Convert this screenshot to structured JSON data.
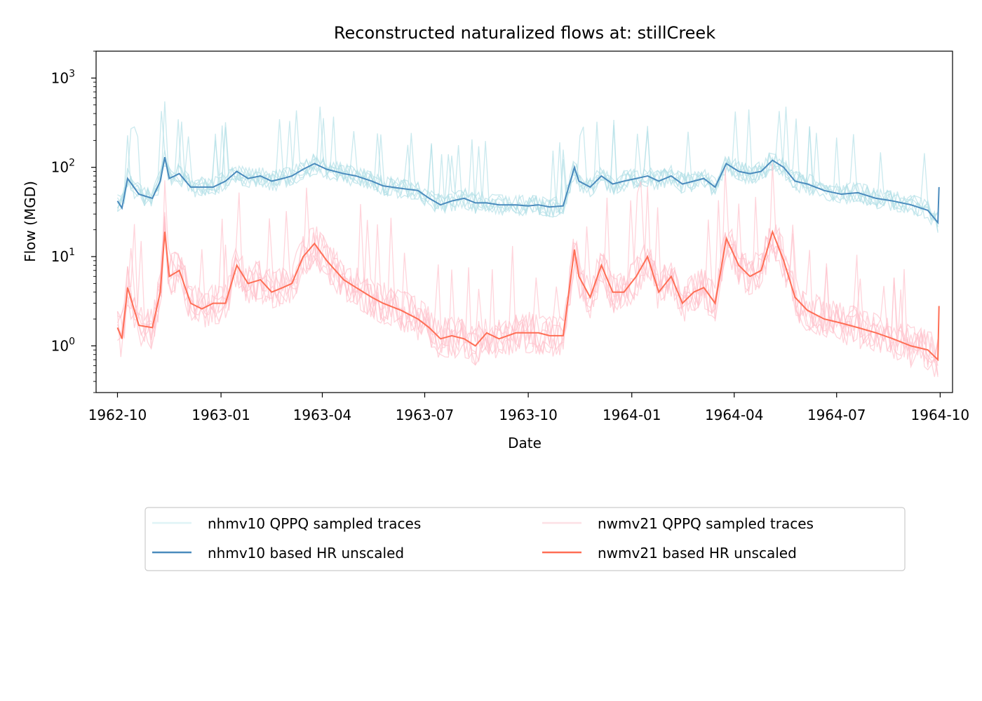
{
  "chart_data": {
    "type": "line",
    "title": "Reconstructed naturalized flows at: stillCreek",
    "xlabel": "Date",
    "ylabel": "Flow (MGD)",
    "yscale": "log",
    "ylim": [
      0.3,
      2000
    ],
    "xlim": [
      "1962-09-12",
      "1964-10-12"
    ],
    "grid": false,
    "legend_position": "below plot, 2 columns",
    "x_ticks": [
      {
        "date": "1962-10-01",
        "label": "1962-10"
      },
      {
        "date": "1963-01-01",
        "label": "1963-01"
      },
      {
        "date": "1963-04-01",
        "label": "1963-04"
      },
      {
        "date": "1963-07-01",
        "label": "1963-07"
      },
      {
        "date": "1963-10-01",
        "label": "1963-10"
      },
      {
        "date": "1964-01-01",
        "label": "1964-01"
      },
      {
        "date": "1964-04-01",
        "label": "1964-04"
      },
      {
        "date": "1964-07-01",
        "label": "1964-07"
      },
      {
        "date": "1964-10-01",
        "label": "1964-10"
      }
    ],
    "y_ticks": [
      {
        "value": 1,
        "base": "10",
        "exp": "0"
      },
      {
        "value": 10,
        "base": "10",
        "exp": "1"
      },
      {
        "value": 100,
        "base": "10",
        "exp": "2"
      },
      {
        "value": 1000,
        "base": "10",
        "exp": "3"
      }
    ],
    "legend": [
      {
        "label": "nhmv10 QPPQ sampled traces",
        "color": "#dff3f6"
      },
      {
        "label": "nwmv21 QPPQ sampled traces",
        "color": "#fde0e5"
      },
      {
        "label": "nhmv10 based HR unscaled",
        "color": "#4a8bbd"
      },
      {
        "label": "nwmv21 based HR unscaled",
        "color": "#ff6e55"
      }
    ],
    "series": [
      {
        "name": "nhmv10 based HR unscaled",
        "color": "#4a8bbd",
        "x": [
          "1962-10-01",
          "1962-10-05",
          "1962-10-10",
          "1962-10-20",
          "1962-11-01",
          "1962-11-08",
          "1962-11-12",
          "1962-11-16",
          "1962-11-25",
          "1962-12-05",
          "1962-12-15",
          "1962-12-25",
          "1963-01-05",
          "1963-01-15",
          "1963-01-25",
          "1963-02-05",
          "1963-02-15",
          "1963-02-25",
          "1963-03-05",
          "1963-03-15",
          "1963-03-25",
          "1963-04-05",
          "1963-04-20",
          "1963-05-01",
          "1963-05-15",
          "1963-05-25",
          "1963-06-10",
          "1963-06-25",
          "1963-07-05",
          "1963-07-15",
          "1963-07-25",
          "1963-08-05",
          "1963-08-15",
          "1963-08-25",
          "1963-09-05",
          "1963-09-20",
          "1963-10-01",
          "1963-10-10",
          "1963-10-20",
          "1963-11-01",
          "1963-11-11",
          "1963-11-15",
          "1963-11-25",
          "1963-12-05",
          "1963-12-15",
          "1963-12-25",
          "1964-01-05",
          "1964-01-15",
          "1964-01-25",
          "1964-02-05",
          "1964-02-15",
          "1964-02-25",
          "1964-03-05",
          "1964-03-15",
          "1964-03-25",
          "1964-04-05",
          "1964-04-15",
          "1964-04-25",
          "1964-05-05",
          "1964-05-15",
          "1964-05-25",
          "1964-06-05",
          "1964-06-20",
          "1964-07-05",
          "1964-07-20",
          "1964-08-05",
          "1964-08-20",
          "1964-09-05",
          "1964-09-20",
          "1964-09-29",
          "1964-09-30"
        ],
        "values": [
          42,
          35,
          75,
          50,
          45,
          70,
          130,
          75,
          85,
          60,
          60,
          60,
          70,
          90,
          75,
          80,
          70,
          75,
          80,
          95,
          110,
          95,
          85,
          80,
          70,
          62,
          58,
          55,
          45,
          38,
          42,
          45,
          40,
          40,
          38,
          38,
          37,
          38,
          36,
          37,
          100,
          70,
          60,
          80,
          65,
          70,
          75,
          80,
          70,
          80,
          65,
          70,
          75,
          60,
          110,
          90,
          85,
          90,
          120,
          100,
          70,
          65,
          55,
          50,
          52,
          45,
          42,
          38,
          33,
          24,
          60
        ]
      },
      {
        "name": "nwmv21 based HR unscaled",
        "color": "#ff6e55",
        "x": [
          "1962-10-01",
          "1962-10-05",
          "1962-10-10",
          "1962-10-20",
          "1962-11-01",
          "1962-11-08",
          "1962-11-12",
          "1962-11-16",
          "1962-11-25",
          "1962-12-05",
          "1962-12-15",
          "1962-12-25",
          "1963-01-05",
          "1963-01-15",
          "1963-01-25",
          "1963-02-05",
          "1963-02-15",
          "1963-02-25",
          "1963-03-05",
          "1963-03-15",
          "1963-03-25",
          "1963-04-05",
          "1963-04-20",
          "1963-05-01",
          "1963-05-15",
          "1963-05-25",
          "1963-06-10",
          "1963-06-25",
          "1963-07-05",
          "1963-07-15",
          "1963-07-25",
          "1963-08-05",
          "1963-08-15",
          "1963-08-25",
          "1963-09-05",
          "1963-09-20",
          "1963-10-01",
          "1963-10-10",
          "1963-10-20",
          "1963-11-01",
          "1963-11-11",
          "1963-11-15",
          "1963-11-25",
          "1963-12-05",
          "1963-12-15",
          "1963-12-25",
          "1964-01-05",
          "1964-01-15",
          "1964-01-25",
          "1964-02-05",
          "1964-02-15",
          "1964-02-25",
          "1964-03-05",
          "1964-03-15",
          "1964-03-25",
          "1964-04-05",
          "1964-04-15",
          "1964-04-25",
          "1964-05-05",
          "1964-05-15",
          "1964-05-25",
          "1964-06-05",
          "1964-06-20",
          "1964-07-05",
          "1964-07-20",
          "1964-08-05",
          "1964-08-20",
          "1964-09-05",
          "1964-09-20",
          "1964-09-29",
          "1964-09-30"
        ],
        "values": [
          1.6,
          1.2,
          4.5,
          1.7,
          1.6,
          4.0,
          19,
          6.0,
          7.0,
          3.0,
          2.6,
          3.0,
          3.0,
          8.0,
          5.0,
          5.5,
          4.0,
          4.5,
          5.0,
          10,
          14,
          9.0,
          5.5,
          4.5,
          3.5,
          3.0,
          2.5,
          2.0,
          1.6,
          1.2,
          1.3,
          1.2,
          1.0,
          1.4,
          1.2,
          1.4,
          1.4,
          1.4,
          1.3,
          1.3,
          12,
          6.0,
          3.5,
          8.0,
          4.0,
          4.0,
          6.0,
          10,
          4.0,
          6.0,
          3.0,
          4.0,
          4.5,
          3.0,
          16,
          8.0,
          6.0,
          7.0,
          19,
          9.0,
          3.5,
          2.5,
          2.0,
          1.8,
          1.6,
          1.4,
          1.2,
          1.0,
          0.9,
          0.7,
          2.8
        ]
      }
    ]
  }
}
